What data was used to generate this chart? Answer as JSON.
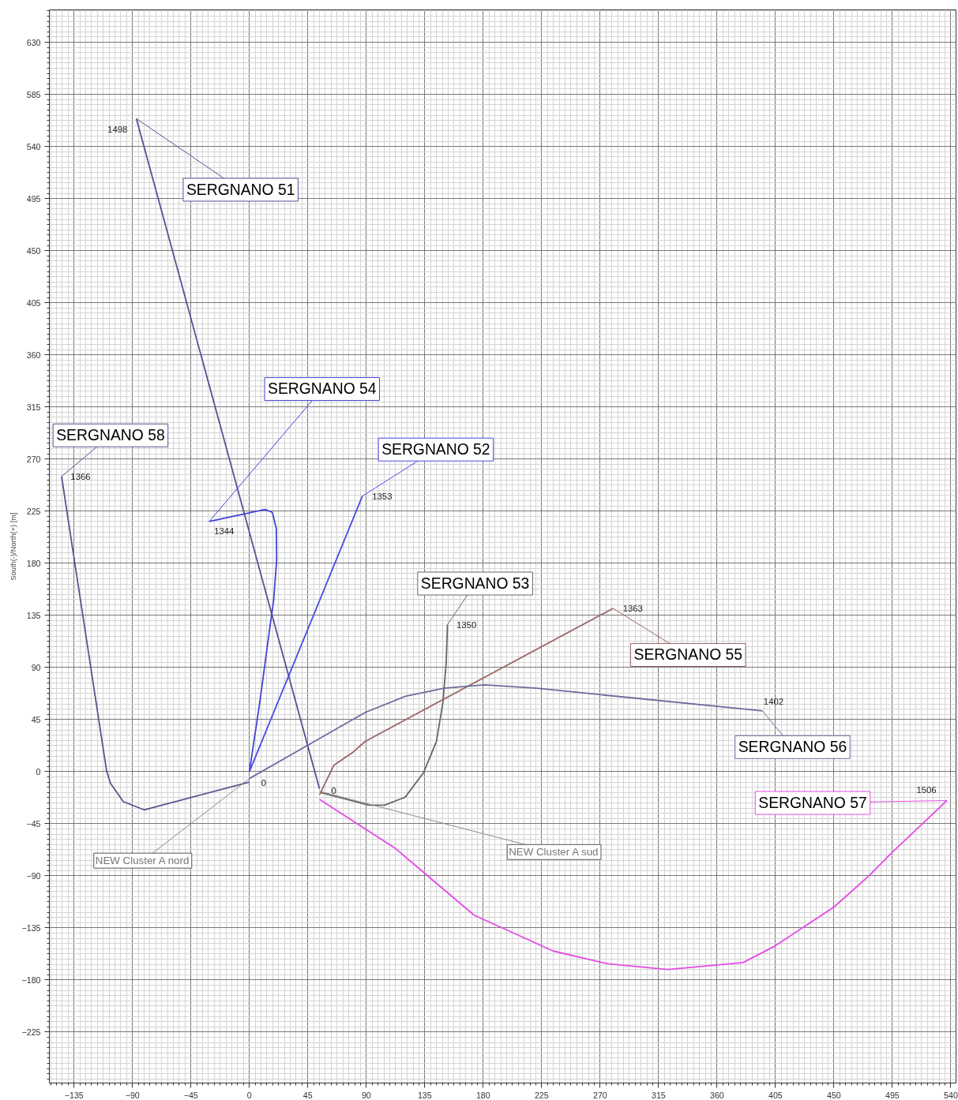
{
  "chart_data": {
    "type": "line",
    "ylabel": "South(-)/North(+) [m]",
    "xlim": [
      -154,
      544
    ],
    "ylim": [
      -269,
      658
    ],
    "xticks": [
      -135,
      -90,
      -45,
      0,
      45,
      90,
      135,
      180,
      225,
      270,
      315,
      360,
      405,
      450,
      495,
      540
    ],
    "yticks": [
      -225,
      -180,
      -135,
      -90,
      -45,
      0,
      45,
      90,
      135,
      180,
      225,
      270,
      315,
      360,
      405,
      450,
      495,
      540,
      585,
      630
    ],
    "grid": true,
    "series": [
      {
        "name": "SERGNANO 51",
        "color": "#5a4f96",
        "x": [
          54,
          -87
        ],
        "values": [
          -15,
          564
        ]
      },
      {
        "name": "SERGNANO 54",
        "color": "#4343d6",
        "x": [
          0,
          8,
          14,
          18.7,
          21,
          20.7,
          17.6,
          12,
          -31
        ],
        "values": [
          0,
          60,
          110,
          148.6,
          183,
          210,
          224,
          226.5,
          216
        ]
      },
      {
        "name": "SERGNANO 58",
        "color": "#55558f",
        "x": [
          0,
          -54,
          -81,
          -97,
          -107,
          -110,
          -144.6
        ],
        "values": [
          -9,
          -25,
          -33,
          -26,
          -10,
          1,
          255
        ]
      },
      {
        "name": "SERGNANO 52",
        "color": "#4a4ae6",
        "x": [
          0,
          87
        ],
        "values": [
          0,
          238
        ]
      },
      {
        "name": "SERGNANO 53",
        "color": "#666666",
        "x": [
          55,
          92,
          104,
          120,
          134,
          144,
          149,
          151.5,
          152.5
        ],
        "values": [
          -18,
          -29,
          -29,
          -22,
          -1,
          26,
          60,
          94,
          127
        ]
      },
      {
        "name": "SERGNANO 55",
        "color": "#9a6464",
        "x": [
          54,
          65,
          80,
          89,
          280
        ],
        "values": [
          -20,
          5.5,
          17,
          26,
          141
        ]
      },
      {
        "name": "SERGNANO 56",
        "color": "#6b6b9e",
        "x": [
          0,
          39,
          89,
          120,
          150,
          181,
          221,
          395
        ],
        "values": [
          -6,
          19,
          51,
          65,
          72,
          75,
          72,
          52.5
        ]
      },
      {
        "name": "SERGNANO 57",
        "color": "#e44ae4",
        "x": [
          54,
          112,
          173,
          234,
          276,
          322,
          380,
          404,
          450,
          477,
          495,
          537
        ],
        "values": [
          -24,
          -66,
          -124,
          -155,
          -166,
          -171,
          -165,
          -151,
          -117,
          -90,
          -69.5,
          -25
        ]
      }
    ],
    "annotations": [
      {
        "text": "1498",
        "x": -87,
        "y": 564
      },
      {
        "text": "1344",
        "x": -31,
        "y": 216
      },
      {
        "text": "1366",
        "x": -144.6,
        "y": 255
      },
      {
        "text": "1353",
        "x": 87,
        "y": 238
      },
      {
        "text": "1350",
        "x": 152.5,
        "y": 127
      },
      {
        "text": "1363",
        "x": 280,
        "y": 141
      },
      {
        "text": "1402",
        "x": 395,
        "y": 52.5
      },
      {
        "text": "1506",
        "x": 537,
        "y": -25
      },
      {
        "text": "0",
        "x": 0,
        "y": -6
      },
      {
        "text": "0",
        "x": 54,
        "y": -17
      },
      {
        "text": "NEW Cluster A nord",
        "x": 0,
        "y": -6
      },
      {
        "text": "NEW Cluster A sud",
        "x": 54,
        "y": -17
      }
    ]
  }
}
